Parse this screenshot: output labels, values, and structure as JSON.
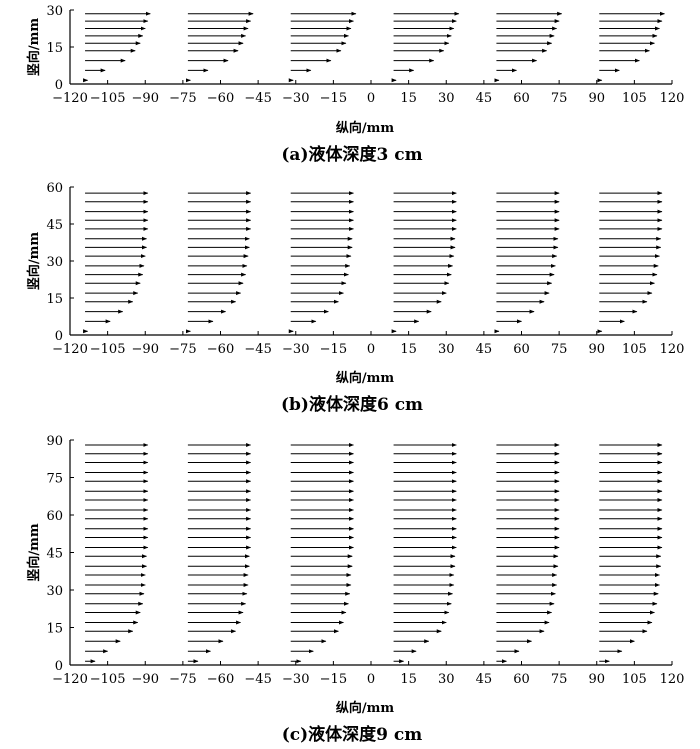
{
  "chart_data": [
    {
      "type": "vector-profile",
      "caption": "(a)液体深度3 cm",
      "xlabel": "纵向/mm",
      "ylabel": "竖向/mm",
      "xlim": [
        -120,
        120
      ],
      "ylim": [
        0,
        30
      ],
      "xticks": [
        "-120",
        "-105",
        "-90",
        "-75",
        "-60",
        "-45",
        "-30",
        "-15",
        "0",
        "15",
        "30",
        "45",
        "60",
        "75",
        "90",
        "105",
        "120"
      ],
      "yticks": [
        "0",
        "15",
        "30"
      ],
      "profile_origins_x": [
        -114,
        -73,
        -32,
        9,
        50,
        91
      ],
      "y": [
        1.5,
        5.5,
        9.5,
        13.5,
        16.5,
        19.5,
        22.5,
        25.5,
        28.5
      ],
      "u": [
        1,
        8,
        16,
        20,
        22,
        23,
        24,
        25,
        26
      ]
    },
    {
      "type": "vector-profile",
      "caption": "(b)液体深度6 cm",
      "xlabel": "纵向/mm",
      "ylabel": "竖向/mm",
      "xlim": [
        -120,
        120
      ],
      "ylim": [
        0,
        60
      ],
      "xticks": [
        "-120",
        "-105",
        "-90",
        "-75",
        "-60",
        "-45",
        "-30",
        "-15",
        "0",
        "15",
        "30",
        "45",
        "60",
        "75",
        "90",
        "105",
        "120"
      ],
      "yticks": [
        "0",
        "15",
        "30",
        "45",
        "60"
      ],
      "profile_origins_x": [
        -114,
        -73,
        -32,
        9,
        50,
        91
      ],
      "y": [
        1.5,
        5.5,
        9.5,
        13.5,
        17,
        21,
        24.5,
        28,
        32,
        35.5,
        39,
        43,
        46.5,
        50,
        54,
        57.5
      ],
      "u": [
        1,
        10,
        15,
        19,
        21,
        22,
        23,
        23.5,
        24,
        24.5,
        24.5,
        25,
        25,
        25,
        25,
        25
      ]
    },
    {
      "type": "vector-profile",
      "caption": "(c)液体深度9 cm",
      "xlabel": "纵向/mm",
      "ylabel": "竖向/mm",
      "xlim": [
        -120,
        120
      ],
      "ylim": [
        0,
        90
      ],
      "xticks": [
        "-120",
        "-105",
        "-90",
        "-75",
        "-60",
        "-45",
        "-30",
        "-15",
        "0",
        "15",
        "30",
        "45",
        "60",
        "75",
        "90",
        "105",
        "120"
      ],
      "yticks": [
        "0",
        "15",
        "30",
        "45",
        "60",
        "75",
        "90"
      ],
      "profile_origins_x": [
        -114,
        -73,
        -32,
        9,
        50,
        91
      ],
      "y": [
        1.5,
        5.5,
        9.5,
        13.5,
        17,
        21,
        24.5,
        28.5,
        32,
        36,
        39.5,
        43.5,
        47,
        51,
        54.5,
        58.5,
        62,
        66,
        69.5,
        73.5,
        77,
        81,
        84.5,
        88
      ],
      "u": [
        4,
        9,
        14,
        19,
        21,
        22,
        23,
        23.5,
        24,
        24,
        24.5,
        24.5,
        25,
        25,
        25,
        25,
        25,
        25,
        25,
        25,
        25,
        25,
        25,
        25
      ]
    }
  ]
}
